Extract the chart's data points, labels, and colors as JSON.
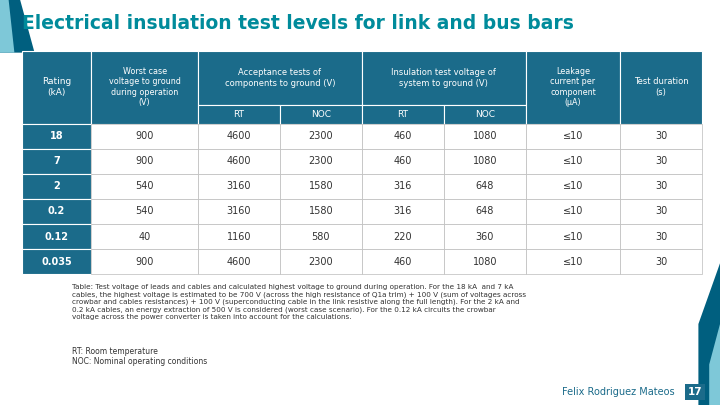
{
  "title": "Electrical insulation test levels for link and bus bars",
  "title_color": "#008B9B",
  "bg_color": "#FFFFFF",
  "header_bg": "#1B6B8A",
  "header_text_color": "#FFFFFF",
  "rows": [
    [
      "18",
      "900",
      "4600",
      "2300",
      "460",
      "1080",
      "≤10",
      "30"
    ],
    [
      "7",
      "900",
      "4600",
      "2300",
      "460",
      "1080",
      "≤10",
      "30"
    ],
    [
      "2",
      "540",
      "3160",
      "1580",
      "316",
      "648",
      "≤10",
      "30"
    ],
    [
      "0.2",
      "540",
      "3160",
      "1580",
      "316",
      "648",
      "≤10",
      "30"
    ],
    [
      "0.12",
      "40",
      "1160",
      "580",
      "220",
      "360",
      "≤10",
      "30"
    ],
    [
      "0.035",
      "900",
      "4600",
      "2300",
      "460",
      "1080",
      "≤10",
      "30"
    ]
  ],
  "footnote": "Table: Test voltage of leads and cables and calculated highest voltage to ground during operation. For the 18 kA  and 7 kA\ncables, the highest voltage is estimated to be 700 V (across the high resistance of Q1a trim) + 100 V (sum of voltages across\ncrowbar and cables resistances) + 100 V (superconducting cable in the link resistive along the full length). For the 2 kA and\n0.2 kA cables, an energy extraction of 500 V is considered (worst case scenario). For the 0.12 kA circuits the crowbar\nvoltage across the power converter is taken into account for the calculations.",
  "footnote2": "RT: Room temperature\nNOC: Nominal operating conditions",
  "footer_text": "Felix Rodriguez Mateos",
  "footer_page": "17",
  "footer_color": "#1B6B8A"
}
